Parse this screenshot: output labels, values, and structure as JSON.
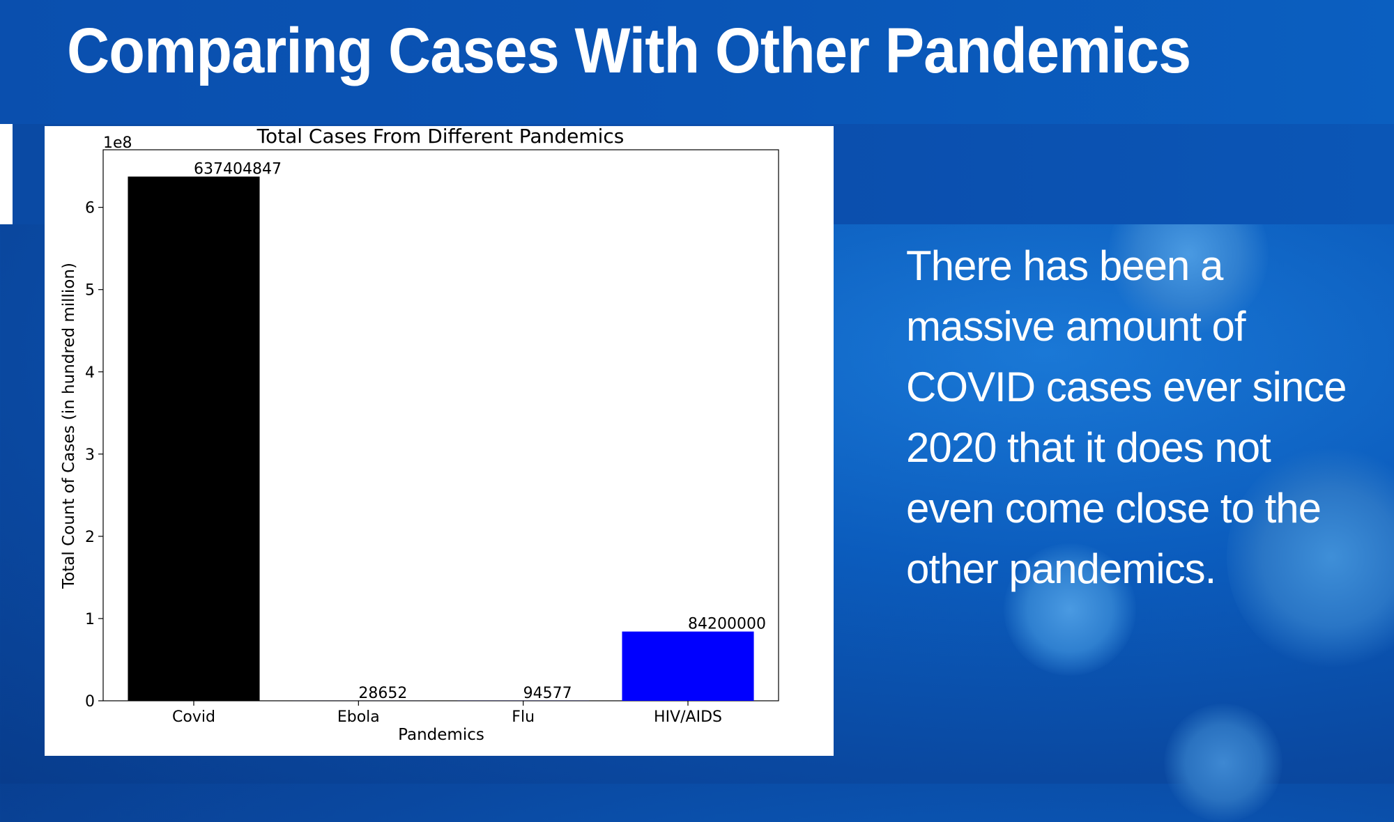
{
  "slide": {
    "title": "Comparing Cases With Other Pandemics",
    "body": "There has been a massive amount of COVID cases ever since 2020 that it does not even come close to the other pandemics."
  },
  "colors": {
    "background": "#0b5cbd",
    "title_text": "#ffffff",
    "covid_bar": "#000000",
    "hiv_bar": "#0000ff"
  },
  "chart_data": {
    "type": "bar",
    "title": "Total Cases From Different Pandemics",
    "xlabel": "Pandemics",
    "ylabel": "Total Count of Cases (in hundred million)",
    "offset_label": "1e8",
    "categories": [
      "Covid",
      "Ebola",
      "Flu",
      "HIV/AIDS"
    ],
    "values": [
      637404847,
      28652,
      94577,
      84200000
    ],
    "value_labels": [
      "637404847",
      "28652",
      "94577",
      "84200000"
    ],
    "bar_colors": [
      "#000000",
      "#0000ff",
      "#0000ff",
      "#0000ff"
    ],
    "ylim": [
      0,
      670000000
    ],
    "yticks": [
      0,
      100000000,
      200000000,
      300000000,
      400000000,
      500000000,
      600000000
    ],
    "ytick_labels": [
      "0",
      "1",
      "2",
      "3",
      "4",
      "5",
      "6"
    ],
    "grid": false,
    "legend": "none"
  }
}
